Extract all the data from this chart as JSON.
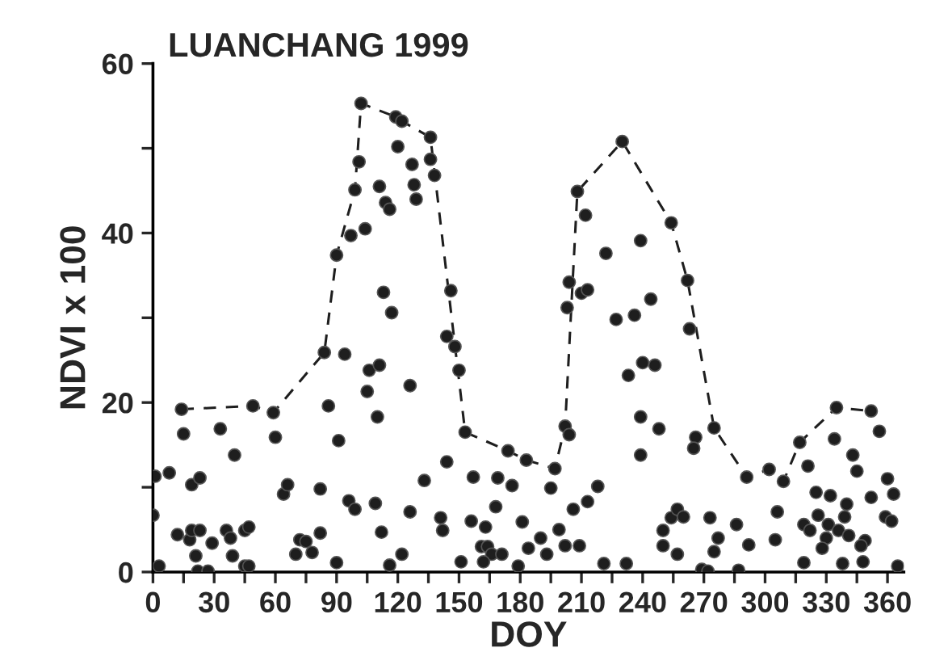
{
  "chart_data": {
    "type": "scatter",
    "title": "LUANCHANG 1999",
    "xlabel": "DOY",
    "ylabel": "NDVI x 100",
    "xlim": [
      0,
      368
    ],
    "ylim": [
      0,
      60
    ],
    "xticks": [
      0,
      {
        "value": 15,
        "label": null
      },
      30,
      {
        "value": 45,
        "label": null
      },
      60,
      {
        "value": 75,
        "label": null
      },
      90,
      {
        "value": 105,
        "label": null
      },
      120,
      {
        "value": 135,
        "label": null
      },
      150,
      {
        "value": 165,
        "label": null
      },
      180,
      {
        "value": 195,
        "label": null
      },
      210,
      {
        "value": 225,
        "label": null
      },
      240,
      {
        "value": 255,
        "label": null
      },
      270,
      {
        "value": 285,
        "label": null
      },
      300,
      {
        "value": 315,
        "label": null
      },
      330,
      {
        "value": 345,
        "label": null
      },
      360
    ],
    "yticks": [
      0,
      {
        "value": 10,
        "label": null
      },
      20,
      {
        "value": 30,
        "label": null
      },
      40,
      {
        "value": 50,
        "label": null
      },
      60
    ],
    "grid": false,
    "legend": false,
    "series": [
      {
        "color": "#1e1e1e",
        "marker": "circle",
        "x": [
          1,
          0,
          3,
          8,
          14,
          15,
          19,
          23,
          12,
          18,
          19,
          23,
          21,
          22,
          27,
          29,
          33,
          40,
          36,
          38,
          39,
          45,
          47,
          45,
          47,
          49,
          59,
          60,
          64,
          66,
          70,
          72,
          75,
          78,
          82,
          82,
          84,
          86,
          90,
          90,
          91,
          94,
          96,
          99,
          97,
          99,
          101,
          102,
          104,
          111,
          114,
          116,
          113,
          117,
          106,
          111,
          105,
          110,
          109,
          112,
          116,
          122,
          119,
          122,
          120,
          136,
          127,
          128,
          129,
          136,
          138,
          146,
          144,
          148,
          150,
          126,
          153,
          144,
          133,
          126,
          141,
          142,
          157,
          169,
          176,
          174,
          183,
          168,
          156,
          163,
          161,
          164,
          166,
          171,
          162,
          151,
          179,
          181,
          184,
          190,
          193,
          197,
          195,
          199,
          202,
          209,
          206,
          213,
          218,
          202,
          204,
          204,
          203,
          208,
          212,
          210,
          213,
          222,
          230,
          239,
          227,
          236,
          244,
          240,
          246,
          233,
          239,
          248,
          239,
          221,
          232,
          250,
          250,
          254,
          262,
          263,
          266,
          265,
          275,
          291,
          302,
          309,
          317,
          321,
          334,
          335,
          352,
          356,
          343,
          345,
          360,
          363,
          359,
          362,
          352,
          325,
          332,
          340,
          339,
          326,
          319,
          322,
          331,
          336,
          341,
          330,
          328,
          349,
          347,
          338,
          348,
          365,
          319,
          305,
          306,
          292,
          286,
          277,
          275,
          273,
          254,
          257,
          260,
          257,
          269,
          272,
          287
        ],
        "values": [
          11.3,
          6.7,
          0.7,
          11.7,
          19.2,
          16.3,
          10.3,
          11.1,
          4.4,
          3.8,
          4.9,
          4.9,
          1.9,
          0.1,
          0.1,
          3.4,
          16.9,
          13.8,
          4.9,
          4.0,
          1.9,
          4.9,
          5.3,
          0.7,
          0.7,
          19.6,
          18.8,
          15.9,
          9.2,
          10.3,
          2.1,
          3.8,
          3.6,
          2.3,
          4.6,
          9.8,
          25.9,
          19.6,
          37.4,
          1.1,
          15.5,
          25.7,
          8.4,
          7.4,
          39.7,
          45.1,
          48.4,
          55.3,
          40.5,
          45.5,
          43.6,
          42.8,
          33.0,
          30.6,
          23.8,
          24.4,
          21.3,
          18.3,
          8.1,
          4.7,
          0.8,
          2.1,
          53.7,
          53.2,
          50.2,
          51.3,
          48.1,
          45.7,
          44.0,
          48.7,
          46.8,
          33.2,
          27.8,
          26.6,
          23.8,
          22.0,
          16.5,
          13.0,
          10.8,
          7.1,
          6.4,
          4.9,
          11.2,
          11.1,
          10.2,
          14.3,
          13.2,
          7.7,
          6.0,
          5.3,
          3.0,
          3.0,
          2.1,
          2.1,
          1.2,
          1.2,
          0.7,
          5.9,
          2.8,
          4.0,
          2.1,
          12.2,
          9.9,
          5.0,
          3.1,
          3.1,
          7.4,
          8.3,
          10.1,
          17.2,
          16.2,
          34.2,
          31.2,
          44.9,
          42.1,
          32.9,
          33.3,
          37.6,
          50.8,
          39.1,
          29.8,
          30.3,
          32.2,
          24.7,
          24.4,
          23.2,
          18.3,
          16.9,
          13.8,
          1.0,
          1.0,
          4.9,
          3.1,
          41.2,
          34.4,
          28.7,
          15.9,
          14.6,
          17.0,
          11.2,
          12.1,
          10.7,
          15.3,
          12.5,
          15.7,
          19.4,
          19.0,
          16.6,
          13.8,
          11.9,
          11.0,
          9.2,
          6.5,
          6.0,
          8.8,
          9.4,
          9.0,
          8.0,
          6.5,
          6.7,
          5.6,
          4.9,
          5.6,
          4.9,
          4.3,
          4.0,
          2.8,
          3.7,
          3.1,
          1.0,
          1.2,
          0.7,
          1.1,
          3.8,
          7.1,
          3.2,
          5.6,
          4.0,
          2.4,
          6.4,
          6.4,
          7.4,
          6.5,
          2.1,
          0.3,
          0.1,
          0.2
        ]
      },
      {
        "type": "line",
        "color": "#1e1e1e",
        "marker": "none",
        "line_style": "dashed",
        "x": [
          14,
          49,
          59,
          84,
          90,
          99,
          102,
          119,
          122,
          136,
          153,
          174,
          183,
          197,
          202,
          208,
          230,
          254,
          262,
          275,
          291,
          302,
          309,
          317,
          335,
          352
        ],
        "values": [
          19.2,
          19.6,
          18.8,
          25.9,
          37.4,
          45.1,
          55.3,
          53.7,
          53.2,
          51.3,
          16.5,
          14.3,
          13.2,
          12.2,
          17.2,
          44.9,
          50.8,
          41.2,
          34.4,
          17.0,
          11.2,
          12.1,
          10.7,
          15.3,
          19.4,
          19.0
        ]
      }
    ]
  }
}
